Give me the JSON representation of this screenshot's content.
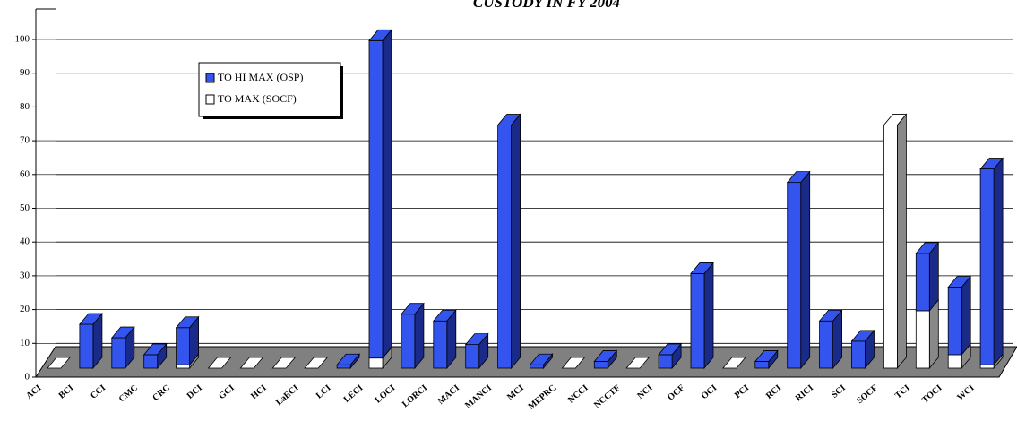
{
  "chart_data": {
    "type": "bar3d_stacked",
    "title": "CUSTODY IN FY 2004",
    "categories": [
      "ACI",
      "BCI",
      "CCI",
      "CMC",
      "CRC",
      "DCI",
      "GCI",
      "HCI",
      "LaECI",
      "LCI",
      "LECI",
      "LOCI",
      "LORCI",
      "MACI",
      "MANCI",
      "MCI",
      "MEPRC",
      "NCCI",
      "NCCTF",
      "NCI",
      "OCF",
      "OCI",
      "PCI",
      "RCI",
      "RICI",
      "SCI",
      "SOCF",
      "TCI",
      "TOCI",
      "WCI"
    ],
    "series": [
      {
        "name": "TO HI MAX (OSP)",
        "color": "#3355ee",
        "values": [
          0,
          13,
          9,
          4,
          11,
          0,
          0,
          0,
          0,
          1,
          94,
          16,
          14,
          7,
          72,
          1,
          0,
          2,
          0,
          4,
          28,
          0,
          2,
          55,
          14,
          8,
          0,
          17,
          20,
          58
        ]
      },
      {
        "name": "TO MAX (SOCF)",
        "color": "#ffffff",
        "values": [
          0,
          0,
          0,
          0,
          1,
          0,
          0,
          0,
          0,
          0,
          3,
          0,
          0,
          0,
          0,
          0,
          0,
          0,
          0,
          0,
          0,
          0,
          0,
          0,
          0,
          0,
          72,
          17,
          4,
          1
        ]
      }
    ],
    "stack_order": [
      1,
      0
    ],
    "ylim": [
      0,
      100
    ],
    "yticks": [
      0,
      10,
      20,
      30,
      40,
      50,
      60,
      70,
      80,
      90,
      100
    ],
    "grid": true
  }
}
